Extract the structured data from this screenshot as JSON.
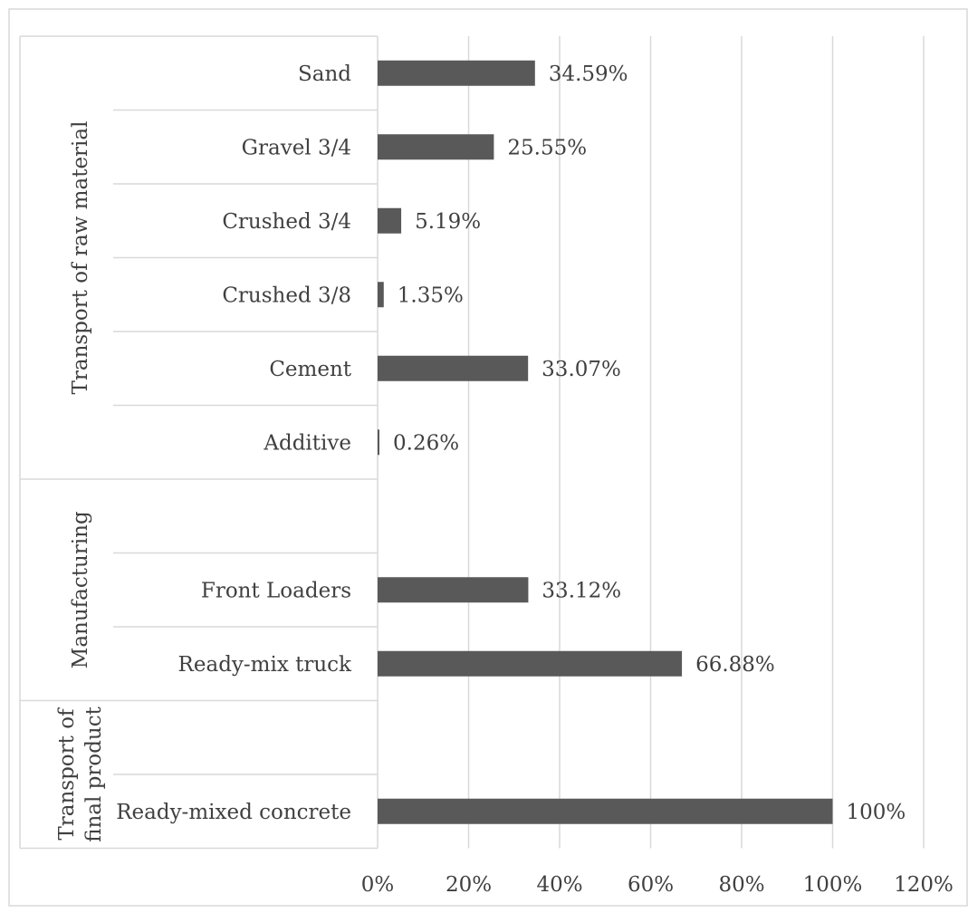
{
  "chart_data": {
    "type": "bar",
    "orientation": "horizontal",
    "title": "",
    "xlabel": "",
    "ylabel": "",
    "xlim": [
      0,
      120
    ],
    "x_ticks": [
      "0%",
      "20%",
      "40%",
      "60%",
      "80%",
      "100%",
      "120%"
    ],
    "grid": "vertical",
    "legend": "none",
    "bar_color": "#595959",
    "groups": [
      {
        "name_lines": [
          "Transport of raw material"
        ],
        "rows": [
          {
            "label": "Sand",
            "value": 34.59,
            "value_label": "34.59%"
          },
          {
            "label": "Gravel 3/4",
            "value": 25.55,
            "value_label": "25.55%"
          },
          {
            "label": "Crushed 3/4",
            "value": 5.19,
            "value_label": "5.19%"
          },
          {
            "label": "Crushed 3/8",
            "value": 1.35,
            "value_label": "1.35%"
          },
          {
            "label": "Cement",
            "value": 33.07,
            "value_label": "33.07%"
          },
          {
            "label": "Additive",
            "value": 0.26,
            "value_label": "0.26%"
          }
        ]
      },
      {
        "name_lines": [
          "Manufacturing"
        ],
        "rows": [
          {
            "label": "",
            "value": null,
            "value_label": ""
          },
          {
            "label": "Front Loaders",
            "value": 33.12,
            "value_label": "33.12%"
          },
          {
            "label": "Ready-mix truck",
            "value": 66.88,
            "value_label": "66.88%"
          }
        ]
      },
      {
        "name_lines": [
          "Transport of",
          "final product"
        ],
        "rows": [
          {
            "label": "",
            "value": null,
            "value_label": ""
          },
          {
            "label": "Ready-mixed concrete",
            "value": 100,
            "value_label": "100%"
          }
        ]
      }
    ]
  }
}
